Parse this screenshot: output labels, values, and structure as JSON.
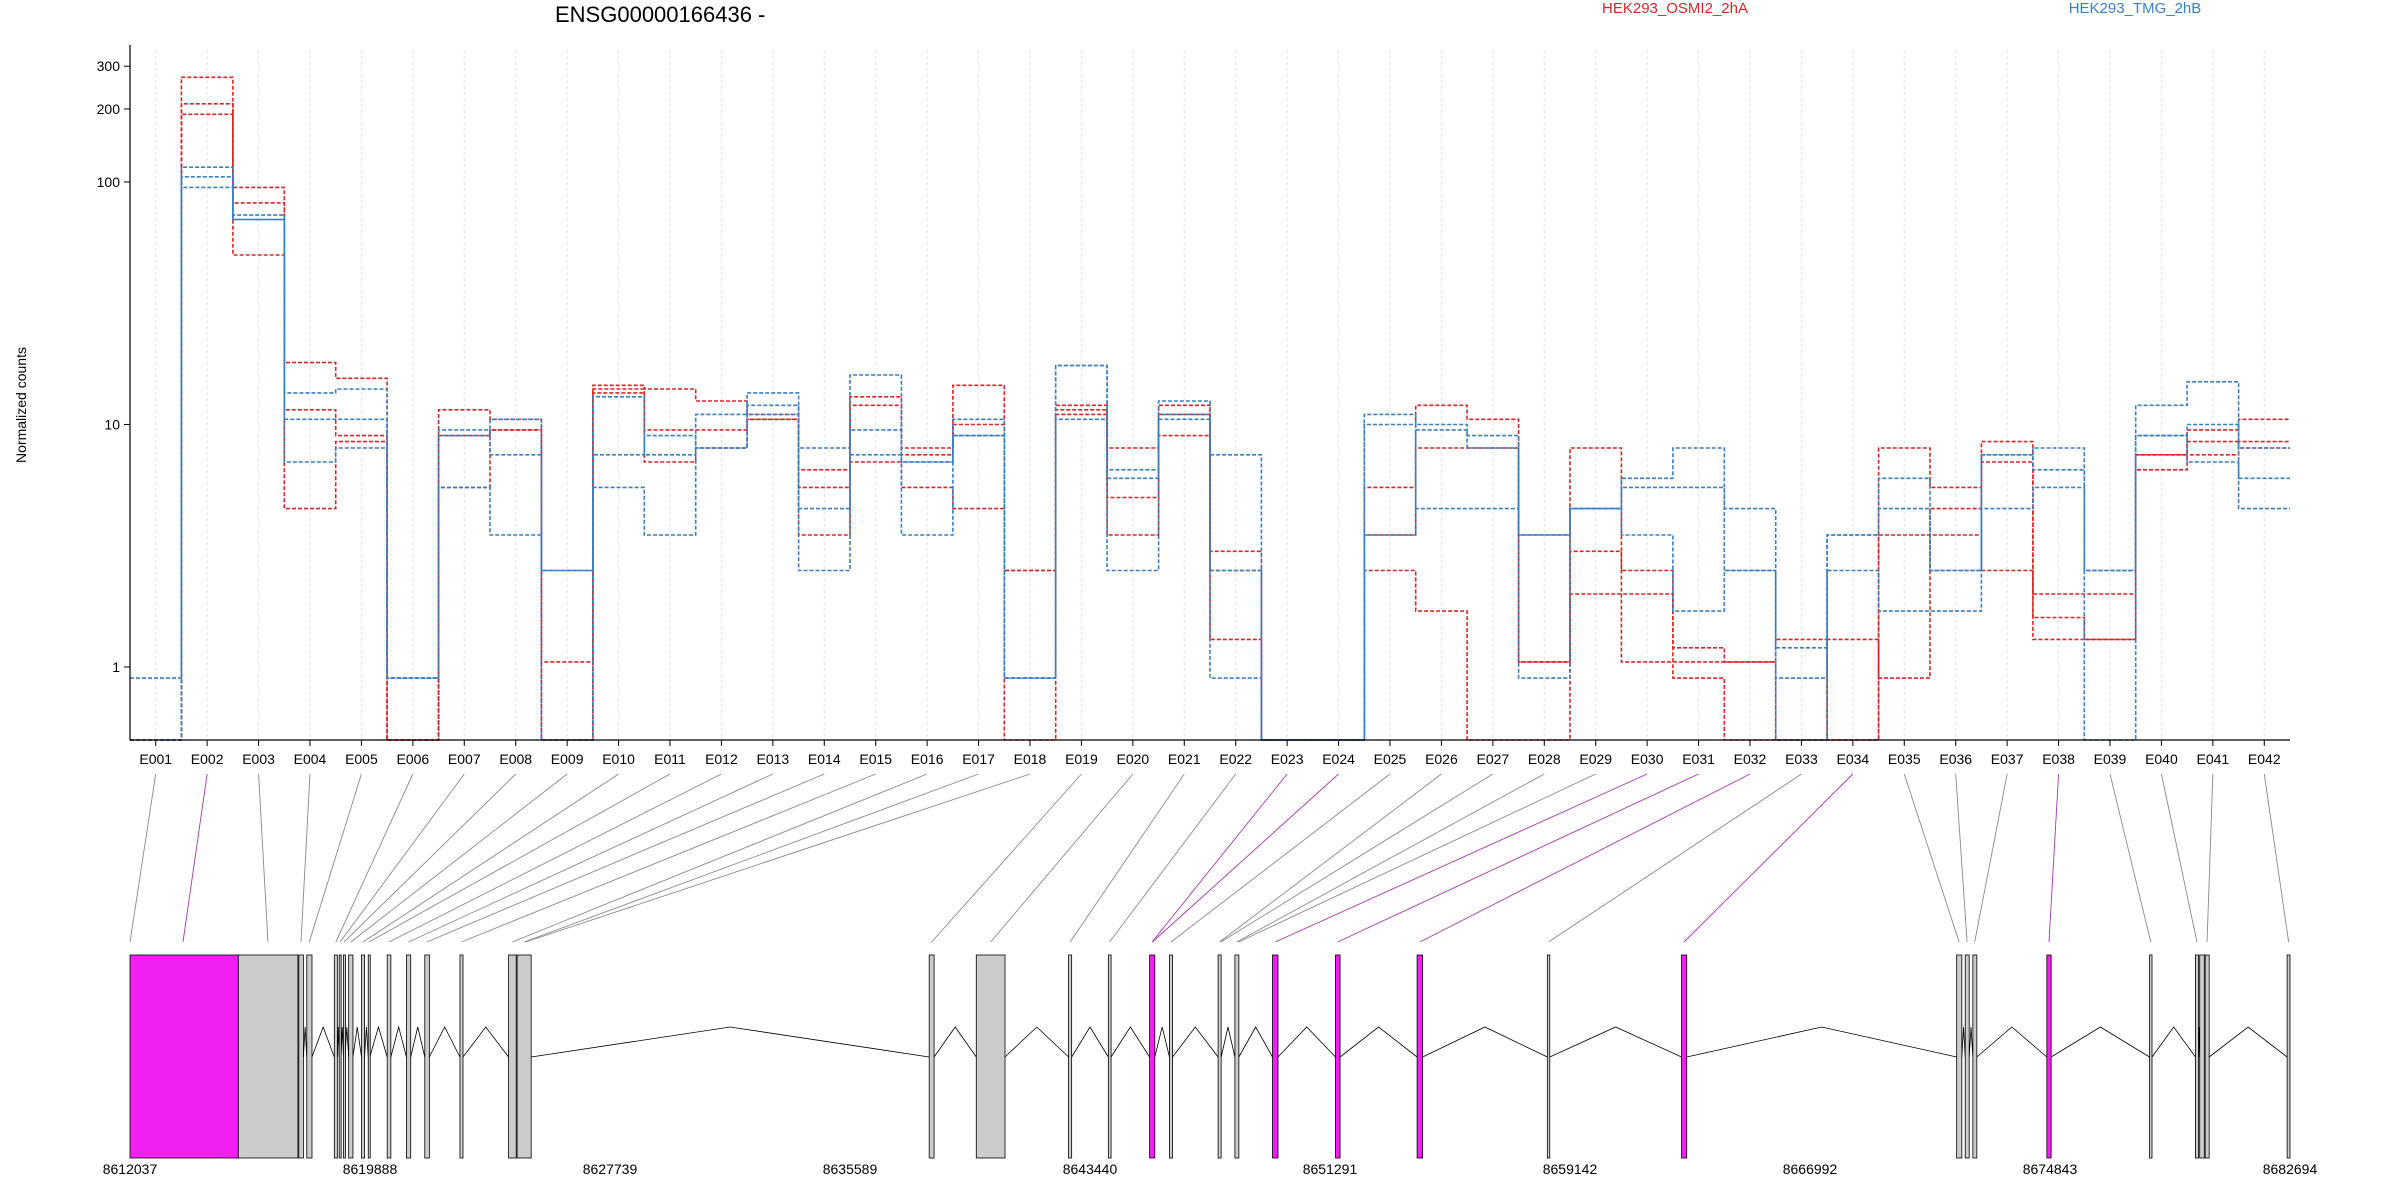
{
  "chart_data": {
    "type": "line",
    "title": "ENSG00000166436 -",
    "xlabel": "",
    "ylabel": "Normalized counts",
    "yscale": "log",
    "ylim": [
      0.5,
      350
    ],
    "y_ticks": [
      1,
      10,
      100,
      200,
      300
    ],
    "grid": "vertical dashed",
    "legend": {
      "placement": "top",
      "entries": [
        {
          "name": "HEK293_OSMI2_2hA",
          "color": "#d62728"
        },
        {
          "name": "HEK293_TMG_2hB",
          "color": "#3a7fc1"
        }
      ]
    },
    "categories": [
      "E001",
      "E002",
      "E003",
      "E004",
      "E005",
      "E006",
      "E007",
      "E008",
      "E009",
      "E010",
      "E011",
      "E012",
      "E013",
      "E014",
      "E015",
      "E016",
      "E017",
      "E018",
      "E019",
      "E020",
      "E021",
      "E022",
      "E023",
      "E024",
      "E025",
      "E026",
      "E027",
      "E028",
      "E029",
      "E030",
      "E031",
      "E032",
      "E033",
      "E034",
      "E035",
      "E036",
      "E037",
      "E038",
      "E039",
      "E040",
      "E041",
      "E042"
    ],
    "series": [
      {
        "group": "HEK293_OSMI2_2hA",
        "color": "#d62728",
        "values": [
          0.5,
          270,
          95,
          18,
          15.5,
          0.5,
          11.5,
          10.5,
          1.05,
          14.5,
          14,
          12.5,
          11,
          6.5,
          13,
          8,
          14.5,
          2.5,
          12,
          8,
          11,
          3,
          0.5,
          0.5,
          5.5,
          12,
          10.5,
          1.05,
          8,
          2.5,
          1.2,
          1.05,
          0.5,
          0.5,
          8,
          5.5,
          8.5,
          2,
          2,
          7.5,
          9.5,
          10.5
        ]
      },
      {
        "group": "HEK293_OSMI2_2hA",
        "color": "#d62728",
        "values": [
          0.5,
          210,
          82,
          11.5,
          9,
          0.5,
          5.5,
          9.5,
          0.5,
          14,
          9.5,
          9.5,
          10.5,
          5.5,
          12,
          7.5,
          10,
          2.5,
          11.5,
          5,
          9,
          1.3,
          0.5,
          0.5,
          3.5,
          8,
          8,
          1.05,
          3,
          1.05,
          1.05,
          1.05,
          1.3,
          0.5,
          3.5,
          4.5,
          7,
          1.6,
          1.3,
          6.5,
          8.5,
          8
        ]
      },
      {
        "group": "HEK293_OSMI2_2hA",
        "color": "#d62728",
        "values": [
          0.5,
          190,
          50,
          4.5,
          8.5,
          0.5,
          9,
          9.5,
          0.5,
          13.5,
          7,
          8,
          10.5,
          3.5,
          7,
          5.5,
          4.5,
          0.5,
          11,
          3.5,
          12,
          2.5,
          0.5,
          0.5,
          2.5,
          1.7,
          0.5,
          0.5,
          2,
          2,
          0.9,
          0.5,
          0.5,
          1.3,
          0.9,
          3.5,
          2.5,
          1.3,
          1.3,
          7.5,
          7.5,
          8.5
        ]
      },
      {
        "group": "HEK293_TMG_2hB",
        "color": "#3a7fc1",
        "values": [
          0.9,
          115,
          73,
          13.5,
          14,
          0.9,
          9.5,
          7.5,
          2.5,
          7.5,
          9,
          8,
          13.5,
          8,
          16,
          7,
          10.5,
          0.9,
          17.5,
          6,
          12.5,
          7.5,
          0.5,
          0.5,
          11,
          10,
          9,
          3.5,
          4.5,
          6,
          8,
          4.5,
          1.2,
          3.5,
          6,
          2.5,
          7.5,
          6.5,
          2.5,
          12,
          15,
          8
        ]
      },
      {
        "group": "HEK293_TMG_2hB",
        "color": "#3a7fc1",
        "values": [
          0.5,
          105,
          70,
          10.5,
          10.5,
          0.9,
          5.5,
          3.5,
          2.5,
          5.5,
          3.5,
          11,
          12,
          4.5,
          9.5,
          3.5,
          9,
          0.9,
          17.5,
          6.5,
          11,
          2.5,
          0.5,
          0.5,
          10,
          4.5,
          4.5,
          0.9,
          4.5,
          3.5,
          1.7,
          2.5,
          0.9,
          2.5,
          1.7,
          1.7,
          4.5,
          5.5,
          0.5,
          9,
          10,
          4.5
        ]
      },
      {
        "group": "HEK293_TMG_2hB",
        "color": "#3a7fc1",
        "values": [
          0.5,
          95,
          70,
          7,
          8,
          0.9,
          9,
          10.5,
          0.5,
          13,
          7.5,
          8,
          11,
          2.5,
          7.5,
          7,
          9,
          0.9,
          10.5,
          2.5,
          10.5,
          0.9,
          0.5,
          0.5,
          3.5,
          9.5,
          8,
          3.5,
          4.5,
          5.5,
          5.5,
          2.5,
          0.5,
          3.5,
          4.5,
          2.5,
          7.5,
          8,
          2.5,
          9,
          7,
          6
        ]
      }
    ],
    "gene_model": {
      "coordinate_ticks": [
        "8612037",
        "8619888",
        "8627739",
        "8635589",
        "8643440",
        "8651291",
        "8659142",
        "8666992",
        "8674843",
        "8682694"
      ],
      "coordinate_range": [
        8612037,
        8682694
      ],
      "highlight_color": "#f21ff2",
      "exon_color": "#cccccc",
      "exons": [
        {
          "start": 8612037,
          "end": 8615580,
          "highlight": true
        },
        {
          "start": 8615580,
          "end": 8617530,
          "highlight": false
        },
        {
          "start": 8617560,
          "end": 8617710,
          "highlight": false
        },
        {
          "start": 8617820,
          "end": 8617990,
          "highlight": false
        },
        {
          "start": 8618720,
          "end": 8618820,
          "highlight": false
        },
        {
          "start": 8618880,
          "end": 8618940,
          "highlight": false
        },
        {
          "start": 8619020,
          "end": 8619070,
          "highlight": false
        },
        {
          "start": 8619190,
          "end": 8619330,
          "highlight": false
        },
        {
          "start": 8619610,
          "end": 8619710,
          "highlight": false
        },
        {
          "start": 8619830,
          "end": 8619880,
          "highlight": false
        },
        {
          "start": 8620450,
          "end": 8620570,
          "highlight": false
        },
        {
          "start": 8621080,
          "end": 8621220,
          "highlight": false
        },
        {
          "start": 8621680,
          "end": 8621830,
          "highlight": false
        },
        {
          "start": 8622830,
          "end": 8622930,
          "highlight": false
        },
        {
          "start": 8624420,
          "end": 8624670,
          "highlight": false
        },
        {
          "start": 8624700,
          "end": 8625160,
          "highlight": false
        },
        {
          "start": 8638180,
          "end": 8638340,
          "highlight": false
        },
        {
          "start": 8639720,
          "end": 8640660,
          "highlight": false
        },
        {
          "start": 8642740,
          "end": 8642840,
          "highlight": false
        },
        {
          "start": 8644040,
          "end": 8644130,
          "highlight": false
        },
        {
          "start": 8645390,
          "end": 8645560,
          "highlight": true
        },
        {
          "start": 8646040,
          "end": 8646140,
          "highlight": false
        },
        {
          "start": 8647630,
          "end": 8647730,
          "highlight": false
        },
        {
          "start": 8648180,
          "end": 8648310,
          "highlight": false
        },
        {
          "start": 8649410,
          "end": 8649590,
          "highlight": true
        },
        {
          "start": 8651470,
          "end": 8651620,
          "highlight": true
        },
        {
          "start": 8654140,
          "end": 8654320,
          "highlight": true
        },
        {
          "start": 8658400,
          "end": 8658480,
          "highlight": false
        },
        {
          "start": 8662790,
          "end": 8662960,
          "highlight": true
        },
        {
          "start": 8671790,
          "end": 8671960,
          "highlight": false
        },
        {
          "start": 8672070,
          "end": 8672200,
          "highlight": false
        },
        {
          "start": 8672320,
          "end": 8672450,
          "highlight": false
        },
        {
          "start": 8674740,
          "end": 8674880,
          "highlight": true
        },
        {
          "start": 8678100,
          "end": 8678180,
          "highlight": false
        },
        {
          "start": 8679600,
          "end": 8679700,
          "highlight": false
        },
        {
          "start": 8679740,
          "end": 8679890,
          "highlight": false
        },
        {
          "start": 8679920,
          "end": 8680050,
          "highlight": false
        },
        {
          "start": 8682600,
          "end": 8682694,
          "highlight": false
        }
      ],
      "connectors": [
        {
          "bin": "E001",
          "position": 8612037,
          "highlight": false
        },
        {
          "bin": "E002",
          "position": 8613770,
          "highlight": true
        },
        {
          "bin": "E003",
          "position": 8616550,
          "highlight": false
        },
        {
          "bin": "E004",
          "position": 8617630,
          "highlight": false
        },
        {
          "bin": "E005",
          "position": 8617900,
          "highlight": false
        },
        {
          "bin": "E006",
          "position": 8618770,
          "highlight": false
        },
        {
          "bin": "E007",
          "position": 8618910,
          "highlight": false
        },
        {
          "bin": "E008",
          "position": 8619040,
          "highlight": false
        },
        {
          "bin": "E009",
          "position": 8619260,
          "highlight": false
        },
        {
          "bin": "E010",
          "position": 8619660,
          "highlight": false
        },
        {
          "bin": "E011",
          "position": 8619850,
          "highlight": false
        },
        {
          "bin": "E012",
          "position": 8620510,
          "highlight": false
        },
        {
          "bin": "E013",
          "position": 8621150,
          "highlight": false
        },
        {
          "bin": "E014",
          "position": 8621750,
          "highlight": false
        },
        {
          "bin": "E015",
          "position": 8622880,
          "highlight": false
        },
        {
          "bin": "E016",
          "position": 8624540,
          "highlight": false
        },
        {
          "bin": "E017",
          "position": 8624930,
          "highlight": false
        },
        {
          "bin": "E018",
          "position": 8624980,
          "highlight": false
        },
        {
          "bin": "E019",
          "position": 8638260,
          "highlight": false
        },
        {
          "bin": "E020",
          "position": 8640190,
          "highlight": false
        },
        {
          "bin": "E021",
          "position": 8642790,
          "highlight": false
        },
        {
          "bin": "E022",
          "position": 8644080,
          "highlight": false
        },
        {
          "bin": "E023",
          "position": 8645470,
          "highlight": true
        },
        {
          "bin": "E024",
          "position": 8645480,
          "highlight": true
        },
        {
          "bin": "E025",
          "position": 8646090,
          "highlight": false
        },
        {
          "bin": "E026",
          "position": 8647680,
          "highlight": false
        },
        {
          "bin": "E027",
          "position": 8647720,
          "highlight": false
        },
        {
          "bin": "E028",
          "position": 8648240,
          "highlight": false
        },
        {
          "bin": "E029",
          "position": 8648300,
          "highlight": false
        },
        {
          "bin": "E030",
          "position": 8649500,
          "highlight": true
        },
        {
          "bin": "E031",
          "position": 8651540,
          "highlight": true
        },
        {
          "bin": "E032",
          "position": 8654230,
          "highlight": true
        },
        {
          "bin": "E033",
          "position": 8658440,
          "highlight": false
        },
        {
          "bin": "E034",
          "position": 8662870,
          "highlight": true
        },
        {
          "bin": "E035",
          "position": 8671870,
          "highlight": false
        },
        {
          "bin": "E036",
          "position": 8672130,
          "highlight": false
        },
        {
          "bin": "E037",
          "position": 8672380,
          "highlight": false
        },
        {
          "bin": "E038",
          "position": 8674810,
          "highlight": true
        },
        {
          "bin": "E039",
          "position": 8678140,
          "highlight": false
        },
        {
          "bin": "E040",
          "position": 8679650,
          "highlight": false
        },
        {
          "bin": "E041",
          "position": 8679980,
          "highlight": false
        },
        {
          "bin": "E042",
          "position": 8682650,
          "highlight": false
        }
      ]
    }
  }
}
